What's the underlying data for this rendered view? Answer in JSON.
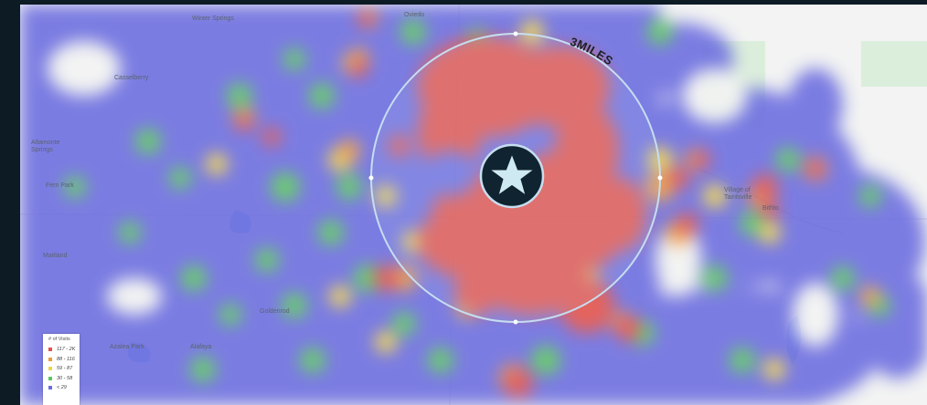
{
  "radius_label": "3MILES",
  "center_marker": "star-icon",
  "legend": {
    "title": "# of Visits",
    "items": [
      {
        "label": "117 - 2K",
        "color": "#e2504a"
      },
      {
        "label": "88 - 116",
        "color": "#ef9a3b"
      },
      {
        "label": "59 - 87",
        "color": "#f0d44a"
      },
      {
        "label": "30 - 58",
        "color": "#59c85d"
      },
      {
        "label": "< 29",
        "color": "#6b6ce0"
      }
    ]
  },
  "places": [
    {
      "name": "Winter Springs"
    },
    {
      "name": "Oviedo"
    },
    {
      "name": "Casselberry"
    },
    {
      "name": "Altamonte Springs"
    },
    {
      "name": "Fern Park"
    },
    {
      "name": "Maitland"
    },
    {
      "name": "Goldenrod"
    },
    {
      "name": "Azalea Park"
    },
    {
      "name": "Alafaya"
    },
    {
      "name": "Village of Taintsville"
    },
    {
      "name": "Bithlo"
    }
  ],
  "colors": {
    "hot": "#e2504a",
    "warm": "#ef9a3b",
    "mid": "#f0d44a",
    "low": "#59c85d",
    "base": "#6b6ce0",
    "water": "#9ec9ea",
    "ring": "#c6def0",
    "marker_bg": "#0f2430",
    "marker_star": "#cfe9f2"
  }
}
